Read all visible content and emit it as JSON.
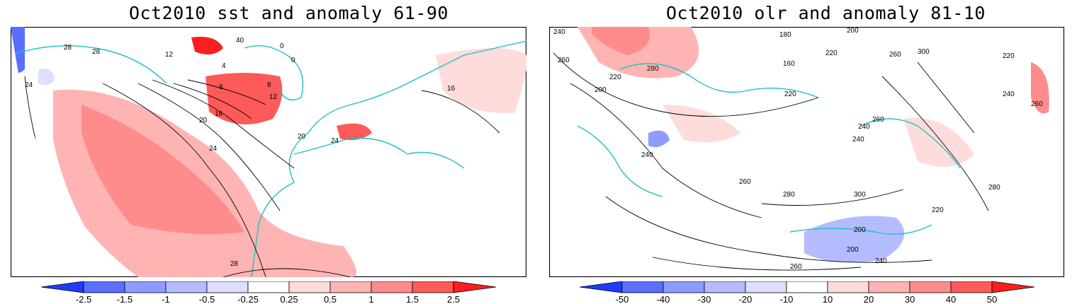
{
  "left_panel": {
    "title": "Oct2010 sst and anomaly 61-90",
    "contour_labels": [
      "24",
      "28",
      "28",
      "12",
      "40",
      "4",
      "0",
      "8",
      "16",
      "20",
      "24",
      "28",
      "20",
      "24",
      "8",
      "12",
      "0",
      "16"
    ],
    "colorbar": {
      "labels": [
        "-2.5",
        "-1.5",
        "-1",
        "-0.5",
        "-0.25",
        "0.25",
        "0.5",
        "1",
        "1.5",
        "2.5"
      ],
      "colors": [
        "#1e3cff",
        "#5a6fff",
        "#8c9cff",
        "#b4bcff",
        "#dcdfff",
        "#ffffff",
        "#ffdcdc",
        "#ffb4b4",
        "#ff8c8c",
        "#ff5a5a",
        "#ff1e1e"
      ]
    }
  },
  "right_panel": {
    "title": "Oct2010 olr and anomaly 81-10",
    "contour_labels": [
      "240",
      "260",
      "200",
      "220",
      "180",
      "160",
      "200",
      "220",
      "240",
      "260",
      "280",
      "300",
      "220",
      "240",
      "200",
      "260",
      "280",
      "300",
      "260",
      "240",
      "220",
      "240",
      "260",
      "280",
      "220",
      "200",
      "240",
      "260"
    ],
    "colorbar": {
      "labels": [
        "-50",
        "-40",
        "-30",
        "-20",
        "-10",
        "10",
        "20",
        "30",
        "40",
        "50"
      ],
      "colors": [
        "#1e3cff",
        "#5a6fff",
        "#8c9cff",
        "#b4bcff",
        "#dcdfff",
        "#ffffff",
        "#ffdcdc",
        "#ffb4b4",
        "#ff8c8c",
        "#ff5a5a",
        "#ff1e1e"
      ]
    }
  },
  "style": {
    "land_outline_color": "#20c0c0",
    "contour_color": "#000000",
    "positive_anomaly_color": "#ff4040",
    "negative_anomaly_color": "#4060ff"
  }
}
